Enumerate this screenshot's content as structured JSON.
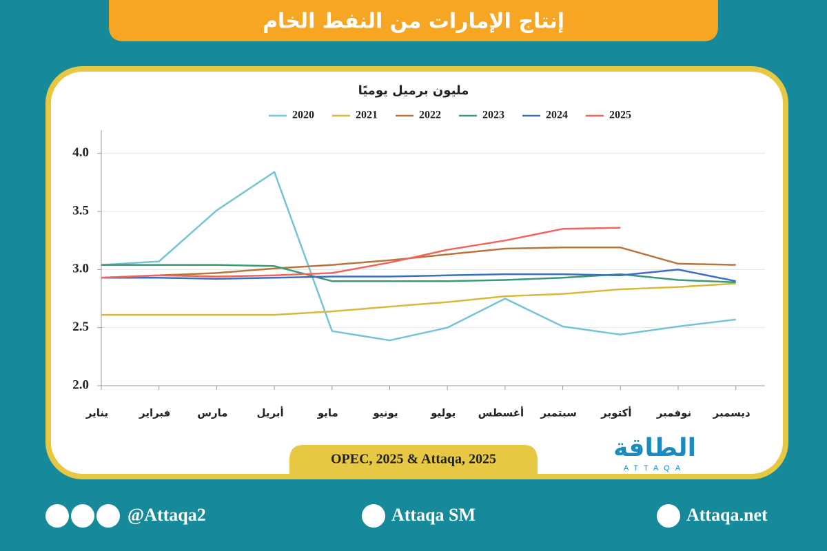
{
  "header": {
    "title": "إنتاج الإمارات من النفط الخام"
  },
  "chart_data": {
    "type": "line",
    "title": "مليون برميل يوميًا",
    "categories": [
      "يناير",
      "فبراير",
      "مارس",
      "أبريل",
      "مايو",
      "يونيو",
      "يوليو",
      "أغسطس",
      "سبتمبر",
      "أكتوبر",
      "نوفمبر",
      "ديسمبر"
    ],
    "series": [
      {
        "name": "2020",
        "color": "#72c4d6",
        "values": [
          3.04,
          3.07,
          3.51,
          3.84,
          2.47,
          2.39,
          2.5,
          2.75,
          2.51,
          2.44,
          2.51,
          2.57
        ]
      },
      {
        "name": "2021",
        "color": "#d8b83a",
        "values": [
          2.61,
          2.61,
          2.61,
          2.61,
          2.64,
          2.68,
          2.72,
          2.77,
          2.79,
          2.83,
          2.85,
          2.88
        ]
      },
      {
        "name": "2022",
        "color": "#b8743a",
        "values": [
          2.93,
          2.95,
          2.97,
          3.01,
          3.04,
          3.08,
          3.13,
          3.18,
          3.19,
          3.19,
          3.05,
          3.04
        ]
      },
      {
        "name": "2023",
        "color": "#3a9a70",
        "values": [
          3.04,
          3.04,
          3.04,
          3.03,
          2.9,
          2.9,
          2.9,
          2.91,
          2.93,
          2.96,
          2.91,
          2.89
        ]
      },
      {
        "name": "2024",
        "color": "#3a6fbf",
        "values": [
          2.93,
          2.93,
          2.92,
          2.93,
          2.94,
          2.94,
          2.95,
          2.96,
          2.96,
          2.95,
          3.0,
          2.9
        ]
      },
      {
        "name": "2025",
        "color": "#f0645a",
        "values": [
          2.93,
          2.95,
          2.94,
          2.95,
          2.97,
          3.06,
          3.17,
          3.25,
          3.35,
          3.36,
          null,
          null
        ]
      }
    ],
    "ylim": [
      2,
      4.2
    ],
    "yticks": [
      {
        "value": 2,
        "label": "2.0"
      },
      2.5,
      {
        "value": 3,
        "label": "3.0"
      },
      3.5,
      {
        "value": 4,
        "label": "4.0"
      }
    ],
    "grid": true,
    "legend": "top"
  },
  "source": "OPEC, 2025 & Attaqa, 2025",
  "logo": {
    "name": "الطاقة",
    "latin": "ATTAQA"
  },
  "footer": {
    "social": "@Attaqa2",
    "youtube": "Attaqa SM",
    "site": "Attaqa.net"
  }
}
